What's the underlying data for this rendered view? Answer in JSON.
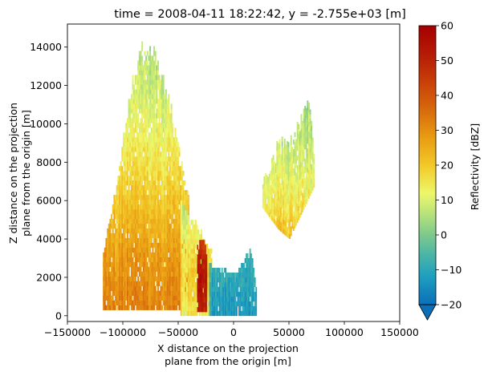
{
  "chart_data": {
    "type": "heatmap",
    "title": "time = 2008-04-11 18:22:42, y = -2.755e+03 [m]",
    "xlabel_line1": "X distance on the projection",
    "xlabel_line2": "plane from the origin [m]",
    "ylabel_line1": "Z distance on the projection",
    "ylabel_line2": "plane from the origin [m]",
    "colorbar_label": "Reflectivity [dBZ]",
    "xlim": [
      -150000,
      150000
    ],
    "ylim": [
      -300,
      15200
    ],
    "x_ticks": [
      -150000,
      -100000,
      -50000,
      0,
      50000,
      100000,
      150000
    ],
    "x_tick_labels": [
      "−150000",
      "−100000",
      "−50000",
      "0",
      "50000",
      "100000",
      "150000"
    ],
    "y_ticks": [
      0,
      2000,
      4000,
      6000,
      8000,
      10000,
      12000,
      14000
    ],
    "y_tick_labels": [
      "0",
      "2000",
      "4000",
      "6000",
      "8000",
      "10000",
      "12000",
      "14000"
    ],
    "colorbar_range": [
      -20,
      60
    ],
    "colorbar_ticks": [
      -20,
      -10,
      0,
      10,
      20,
      30,
      40,
      50,
      60
    ],
    "colorbar_tick_labels": [
      "−20",
      "−10",
      "0",
      "10",
      "20",
      "30",
      "40",
      "50",
      "60"
    ],
    "colorbar_extend": "min",
    "grid": false,
    "colormap_stops": [
      {
        "value": -20,
        "color": "#0a6fb8"
      },
      {
        "value": -12,
        "color": "#1d9ec0"
      },
      {
        "value": -5,
        "color": "#4fb8a4"
      },
      {
        "value": 0,
        "color": "#7cc98c"
      },
      {
        "value": 6,
        "color": "#b6e27a"
      },
      {
        "value": 12,
        "color": "#eef76a"
      },
      {
        "value": 20,
        "color": "#f2c928"
      },
      {
        "value": 28,
        "color": "#e99c12"
      },
      {
        "value": 36,
        "color": "#d86a0c"
      },
      {
        "value": 45,
        "color": "#c73a08"
      },
      {
        "value": 52,
        "color": "#b51b06"
      },
      {
        "value": 60,
        "color": "#a80000"
      }
    ],
    "cell_height": 250,
    "regions": [
      {
        "name": "main-core",
        "x_start": -118000,
        "x_end": -40000,
        "step": 1200,
        "z_bottom": 300,
        "z_top": [
          [
            -118000,
            3000
          ],
          [
            -100000,
            9000
          ],
          [
            -90000,
            12500
          ],
          [
            -80000,
            14200
          ],
          [
            -70000,
            13500
          ],
          [
            -60000,
            11500
          ],
          [
            -50000,
            8500
          ],
          [
            -40000,
            6000
          ]
        ],
        "dbz_base": [
          [
            300,
            32
          ],
          [
            3000,
            28
          ],
          [
            6000,
            20
          ],
          [
            9000,
            13
          ],
          [
            12000,
            8
          ],
          [
            14500,
            5
          ]
        ]
      },
      {
        "name": "lower-tail",
        "x_start": -48000,
        "x_end": -20000,
        "step": 1300,
        "z_bottom": 0,
        "z_top": [
          [
            -48000,
            6000
          ],
          [
            -40000,
            5000
          ],
          [
            -30000,
            4300
          ],
          [
            -20000,
            3200
          ]
        ],
        "dbz_base": [
          [
            0,
            14
          ],
          [
            2000,
            18
          ],
          [
            4000,
            12
          ],
          [
            6000,
            8
          ]
        ]
      },
      {
        "name": "bright-band",
        "x_start": -33000,
        "x_end": -24000,
        "step": 1000,
        "z_bottom": 200,
        "z_top": [
          [
            -33000,
            3600
          ],
          [
            -28000,
            4000
          ],
          [
            -24000,
            2800
          ]
        ],
        "dbz_base": [
          [
            0,
            50
          ],
          [
            2000,
            54
          ],
          [
            4000,
            44
          ]
        ]
      },
      {
        "name": "weak-echo",
        "x_start": -22000,
        "x_end": 20000,
        "step": 1100,
        "z_bottom": 0,
        "z_top": [
          [
            -22000,
            2600
          ],
          [
            -10000,
            2200
          ],
          [
            0,
            2100
          ],
          [
            10000,
            2800
          ],
          [
            15000,
            3400
          ],
          [
            20000,
            1400
          ]
        ],
        "dbz_base": [
          [
            0,
            -12
          ],
          [
            1500,
            -10
          ],
          [
            3500,
            -6
          ]
        ]
      },
      {
        "name": "anvil",
        "x_start": 26000,
        "x_end": 73000,
        "step": 1150,
        "z_bottom": [
          [
            26000,
            5600
          ],
          [
            40000,
            4500
          ],
          [
            50000,
            4000
          ],
          [
            60000,
            5200
          ],
          [
            73000,
            6800
          ]
        ],
        "z_top": [
          [
            26000,
            6800
          ],
          [
            38000,
            8500
          ],
          [
            50000,
            9000
          ],
          [
            60000,
            10000
          ],
          [
            68000,
            11000
          ],
          [
            73000,
            8000
          ]
        ],
        "dbz_base": [
          [
            4000,
            22
          ],
          [
            6000,
            14
          ],
          [
            8000,
            9
          ],
          [
            11000,
            4
          ]
        ]
      }
    ]
  }
}
